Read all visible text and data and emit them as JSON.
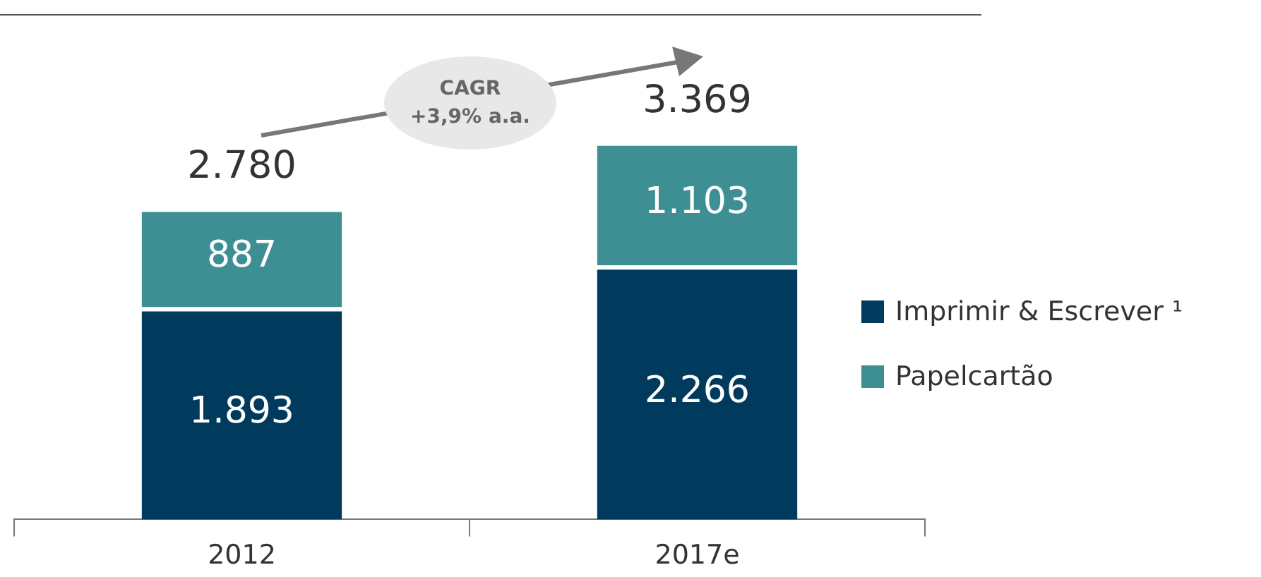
{
  "chart_data": {
    "type": "bar",
    "stacked": true,
    "categories": [
      "2012",
      "2017e"
    ],
    "series": [
      {
        "name": "Imprimir & Escrever ¹",
        "color": "#003a5c",
        "values": [
          1893,
          2266
        ],
        "value_labels": [
          "1.893",
          "2.266"
        ]
      },
      {
        "name": "Papelcartão",
        "color": "#3d8f93",
        "values": [
          887,
          1103
        ],
        "value_labels": [
          "887",
          "1.103"
        ]
      }
    ],
    "totals": [
      "2.780",
      "3.369"
    ],
    "annotations": [
      "CAGR\n+3,9% a.a."
    ],
    "legend": "right",
    "tick_labels": "x",
    "grid": false
  }
}
